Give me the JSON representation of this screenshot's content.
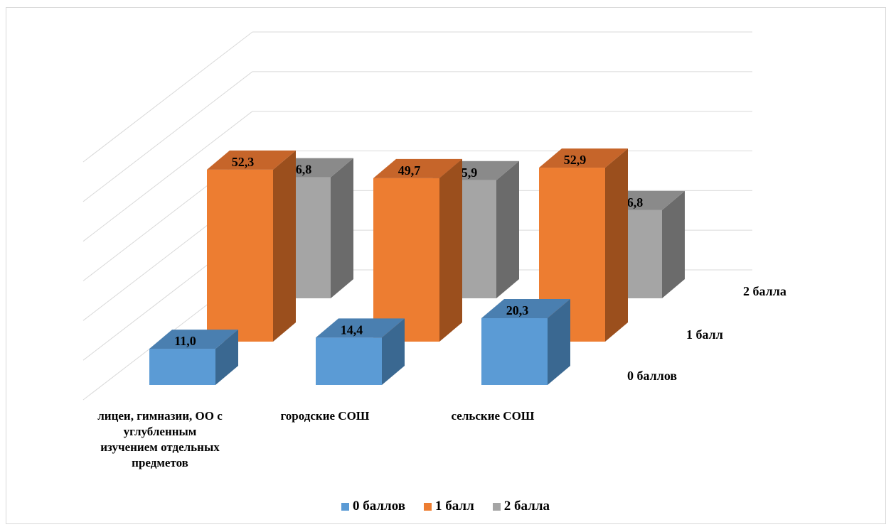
{
  "chart_data": {
    "type": "bar",
    "subtype": "3d-column",
    "categories": [
      "лицеи, гимназии, ОО с углубленным изучением отдельных предметов",
      "городские СОШ",
      "сельские СОШ"
    ],
    "category_label_lines": [
      [
        "лицеи, гимназии, ОО с",
        "углубленным",
        "изучением отдельных",
        "предметов"
      ],
      [
        "городские СОШ"
      ],
      [
        "сельские СОШ"
      ]
    ],
    "series": [
      {
        "name": "0 баллов",
        "values": [
          11.0,
          14.4,
          20.3
        ],
        "labels": [
          "11,0",
          "14,4",
          "20,3"
        ],
        "color": "#5b9bd5",
        "side": "#3a6891",
        "top": "#4a7fb0"
      },
      {
        "name": "1 балл",
        "values": [
          52.3,
          49.7,
          52.9
        ],
        "labels": [
          "52,3",
          "49,7",
          "52,9"
        ],
        "color": "#ed7d31",
        "side": "#9b4f1d",
        "top": "#c6652a"
      },
      {
        "name": "2 балла",
        "values": [
          36.8,
          35.9,
          26.8
        ],
        "labels": [
          "36,8",
          "35,9",
          "26,8"
        ],
        "color": "#a5a5a5",
        "side": "#6b6b6b",
        "top": "#8a8a8a"
      }
    ],
    "ylim": [
      0,
      60
    ],
    "grid": true,
    "legend": "bottom"
  }
}
